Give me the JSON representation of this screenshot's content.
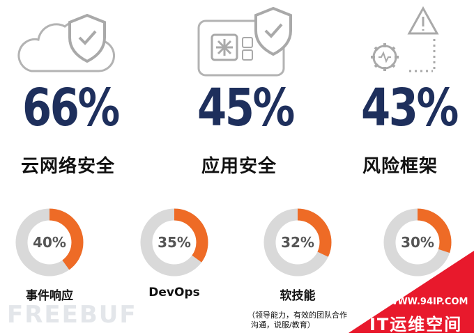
{
  "stats": [
    {
      "value": "66%",
      "label": "云网络安全",
      "icon": "cloud-shield-icon"
    },
    {
      "value": "45%",
      "label": "应用安全",
      "icon": "app-panel-shield-icon"
    },
    {
      "value": "43%",
      "label": "风险框架",
      "icon": "gear-warning-icon"
    }
  ],
  "skills": [
    {
      "value": "40%",
      "fraction": 0.4,
      "label": "事件响应"
    },
    {
      "value": "35%",
      "fraction": 0.35,
      "label": "DevOps"
    },
    {
      "value": "32%",
      "fraction": 0.32,
      "label": "软技能"
    },
    {
      "value": "30%",
      "fraction": 0.3,
      "label": ""
    }
  ],
  "note": {
    "line1": "（领导能力，有效的团队合作",
    "line2": "沟通，说服/教育）"
  },
  "watermark": "FREEBUF",
  "badge": {
    "url": "WWW.94IP.COM",
    "text": "IT运维空间"
  },
  "colors": {
    "accent": "#ee6b26",
    "track": "#d9d9d9",
    "navy": "#1e2f5c",
    "badge": "#e8192c",
    "icon": "#a9a9a9"
  }
}
